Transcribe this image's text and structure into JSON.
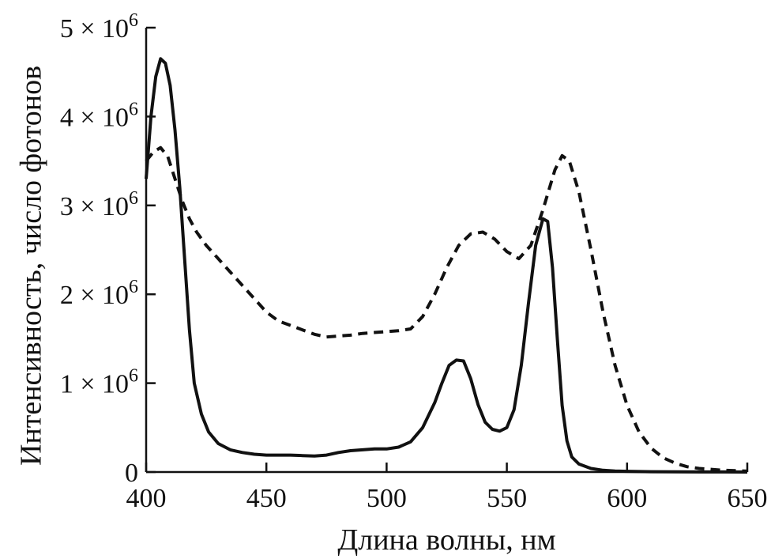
{
  "chart_data": {
    "type": "line",
    "xlabel": "Длина волны, нм",
    "ylabel": "Интенсивность, число фотонов",
    "xlim": [
      400,
      650
    ],
    "ylim": [
      0,
      5000000
    ],
    "x_ticks": [
      {
        "value": 400,
        "label": "400"
      },
      {
        "value": 450,
        "label": "450"
      },
      {
        "value": 500,
        "label": "500"
      },
      {
        "value": 550,
        "label": "550"
      },
      {
        "value": 600,
        "label": "600"
      },
      {
        "value": 650,
        "label": "650"
      }
    ],
    "y_ticks": [
      {
        "value": 0,
        "mant": "0",
        "exp": ""
      },
      {
        "value": 1000000,
        "mant": "1 × 10",
        "exp": "6"
      },
      {
        "value": 2000000,
        "mant": "2 × 10",
        "exp": "6"
      },
      {
        "value": 3000000,
        "mant": "3 × 10",
        "exp": "6"
      },
      {
        "value": 4000000,
        "mant": "4 × 10",
        "exp": "6"
      },
      {
        "value": 5000000,
        "mant": "5 × 10",
        "exp": "6"
      }
    ],
    "grid": false,
    "legend": "none",
    "series": [
      {
        "style": "solid",
        "x": [
          400,
          402,
          404,
          406,
          408,
          410,
          412,
          414,
          416,
          418,
          420,
          423,
          426,
          430,
          435,
          440,
          445,
          450,
          455,
          460,
          465,
          470,
          475,
          480,
          485,
          490,
          495,
          500,
          505,
          510,
          515,
          520,
          523,
          526,
          529,
          532,
          535,
          538,
          541,
          544,
          547,
          550,
          553,
          556,
          559,
          562,
          565,
          567,
          569,
          571,
          573,
          575,
          577,
          580,
          585,
          590,
          595,
          600,
          610,
          620,
          630,
          640,
          650
        ],
        "y": [
          3300000,
          4000000,
          4450000,
          4650000,
          4600000,
          4350000,
          3850000,
          3200000,
          2400000,
          1600000,
          1000000,
          650000,
          450000,
          320000,
          250000,
          220000,
          200000,
          190000,
          190000,
          190000,
          185000,
          180000,
          190000,
          220000,
          240000,
          250000,
          260000,
          260000,
          280000,
          340000,
          500000,
          780000,
          1000000,
          1200000,
          1260000,
          1250000,
          1050000,
          760000,
          560000,
          480000,
          460000,
          500000,
          700000,
          1200000,
          1900000,
          2550000,
          2850000,
          2820000,
          2300000,
          1500000,
          750000,
          350000,
          170000,
          90000,
          40000,
          20000,
          12000,
          8000,
          4000,
          2000,
          1000,
          500,
          300
        ]
      },
      {
        "style": "dashed",
        "x": [
          400,
          403,
          406,
          409,
          412,
          415,
          418,
          421,
          425,
          430,
          435,
          440,
          445,
          450,
          455,
          460,
          465,
          470,
          475,
          480,
          485,
          490,
          495,
          500,
          505,
          510,
          515,
          520,
          525,
          530,
          535,
          540,
          545,
          550,
          555,
          560,
          565,
          570,
          573,
          576,
          580,
          585,
          590,
          595,
          600,
          605,
          610,
          615,
          620,
          625,
          630,
          635,
          640,
          645,
          650
        ],
        "y": [
          3500000,
          3600000,
          3650000,
          3550000,
          3300000,
          3050000,
          2850000,
          2700000,
          2550000,
          2400000,
          2250000,
          2100000,
          1950000,
          1800000,
          1700000,
          1650000,
          1600000,
          1550000,
          1520000,
          1530000,
          1540000,
          1560000,
          1570000,
          1580000,
          1590000,
          1610000,
          1750000,
          2000000,
          2300000,
          2550000,
          2680000,
          2700000,
          2620000,
          2480000,
          2400000,
          2550000,
          2950000,
          3400000,
          3560000,
          3500000,
          3150000,
          2500000,
          1800000,
          1200000,
          750000,
          450000,
          270000,
          160000,
          100000,
          60000,
          40000,
          30000,
          20000,
          15000,
          10000
        ]
      }
    ]
  }
}
